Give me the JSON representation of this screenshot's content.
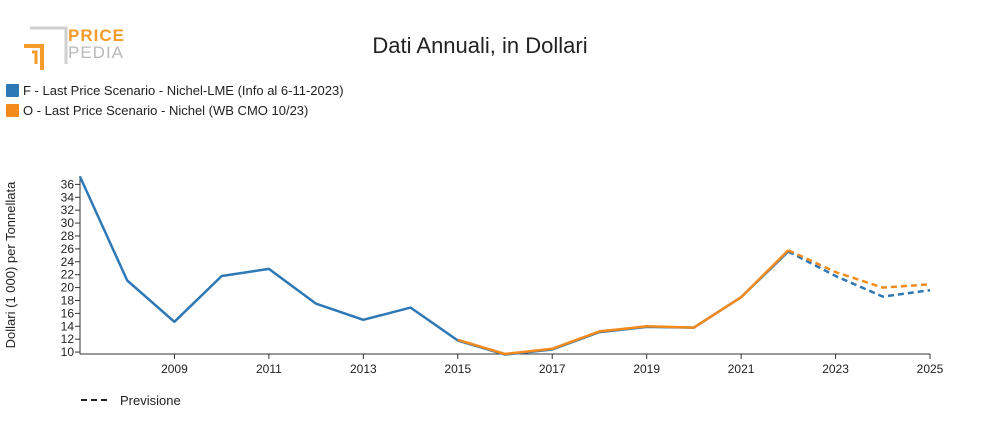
{
  "logo": {
    "line1": "PRICE",
    "line2": "PEDIA"
  },
  "colors": {
    "series_f": "#2e78b5",
    "series_o": "#f28a1e",
    "logo_orange": "#f39b2b",
    "logo_gray": "#b9b9b9"
  },
  "chart_data": {
    "type": "line",
    "title": "Dati Annuali, in Dollari",
    "xlabel": "",
    "ylabel": "Dollari (1 000) per Tonnellata",
    "xlim": [
      2007,
      2025
    ],
    "ylim": [
      9.7,
      37.3
    ],
    "x_ticks": [
      2009,
      2011,
      2013,
      2015,
      2017,
      2019,
      2021,
      2023,
      2025
    ],
    "y_ticks": [
      10,
      12,
      14,
      16,
      18,
      20,
      22,
      24,
      26,
      28,
      30,
      32,
      34,
      36
    ],
    "forecast_from": 2022,
    "forecast_note": "Previsione",
    "series": [
      {
        "name": "F - Last Price Scenario - Nichel-LME (Info al 6-11-2023)",
        "color": "#2e78b5",
        "x": [
          2007,
          2008,
          2009,
          2010,
          2011,
          2012,
          2013,
          2014,
          2015,
          2016,
          2017,
          2018,
          2019,
          2020,
          2021,
          2022,
          2023,
          2024,
          2025
        ],
        "y": [
          37.2,
          21.1,
          14.7,
          21.8,
          22.9,
          17.5,
          15.0,
          16.9,
          11.8,
          9.6,
          10.4,
          13.1,
          13.9,
          13.8,
          18.5,
          25.6,
          21.8,
          18.6,
          19.6
        ]
      },
      {
        "name": "O - Last Price Scenario - Nichel (WB CMO 10/23)",
        "color": "#f28a1e",
        "x": [
          2015,
          2016,
          2017,
          2018,
          2019,
          2020,
          2021,
          2022,
          2023,
          2024,
          2025
        ],
        "y": [
          11.9,
          9.7,
          10.5,
          13.2,
          14.0,
          13.8,
          18.5,
          25.8,
          22.4,
          20.0,
          20.5
        ]
      }
    ]
  }
}
